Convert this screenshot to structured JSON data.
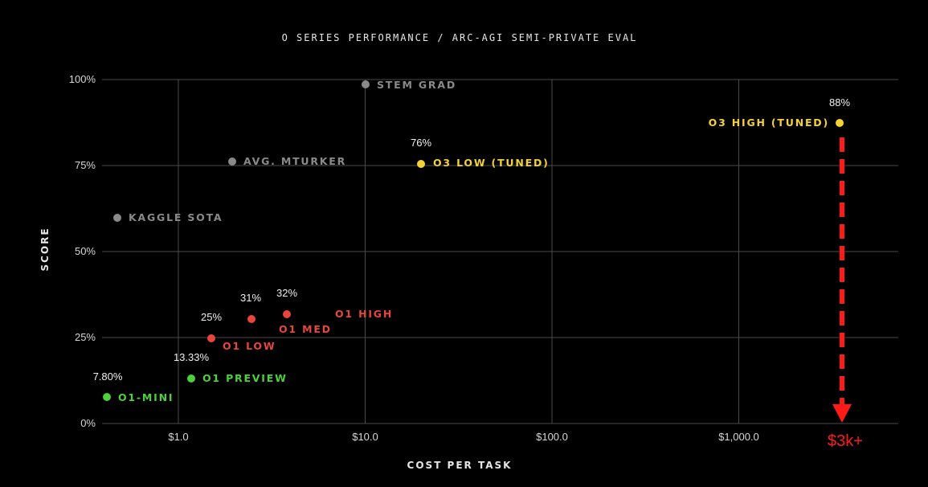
{
  "chart_data": {
    "type": "scatter",
    "title": "O SERIES PERFORMANCE / ARC-AGI SEMI-PRIVATE EVAL",
    "xlabel": "COST PER TASK",
    "ylabel": "SCORE",
    "x_scale": "log",
    "xlim": [
      0.42,
      6000
    ],
    "ylim": [
      0,
      100
    ],
    "x_ticks": [
      1,
      10,
      100,
      1000
    ],
    "x_tick_labels": [
      "$1.0",
      "$10.0",
      "$100.0",
      "$1,000.0"
    ],
    "y_ticks": [
      0,
      25,
      50,
      75,
      100
    ],
    "y_tick_labels": [
      "0%",
      "25%",
      "50%",
      "75%",
      "100%"
    ],
    "grid": true,
    "points": [
      {
        "label": "O1-MINI",
        "value_label": "7.80%",
        "x": 0.42,
        "y": 7.8,
        "group": "o1-mini",
        "color": "#4cd03c"
      },
      {
        "label": "O1 PREVIEW",
        "value_label": "13.33%",
        "x": 1.2,
        "y": 13.33,
        "group": "o1-preview",
        "color": "#4cd03c"
      },
      {
        "label": "O1 LOW",
        "value_label": "25%",
        "x": 1.5,
        "y": 25,
        "group": "o1",
        "color": "#e8453c"
      },
      {
        "label": "O1 MED",
        "value_label": "31%",
        "x": 2.5,
        "y": 31,
        "group": "o1",
        "color": "#e8453c"
      },
      {
        "label": "O1 HIGH",
        "value_label": "32%",
        "x": 3.9,
        "y": 32,
        "group": "o1",
        "color": "#e8453c"
      },
      {
        "label": "KAGGLE SOTA",
        "value_label": "",
        "x": 0.47,
        "y": 60,
        "group": "reference",
        "color": "#8a8a8a"
      },
      {
        "label": "AVG. MTURKER",
        "value_label": "",
        "x": 2.0,
        "y": 76,
        "group": "reference",
        "color": "#8a8a8a"
      },
      {
        "label": "STEM GRAD",
        "value_label": "",
        "x": 10,
        "y": 98.5,
        "group": "reference",
        "color": "#8a8a8a"
      },
      {
        "label": "O3 LOW (TUNED)",
        "value_label": "76%",
        "x": 20,
        "y": 76,
        "group": "o3",
        "color": "#f5d233"
      },
      {
        "label": "O3 HIGH (TUNED)",
        "value_label": "88%",
        "x": 3000,
        "y": 88,
        "group": "o3",
        "color": "#f5d233"
      }
    ],
    "annotation": {
      "text": "$3k+",
      "color": "#ff1a1a",
      "style": "dashed red arrow pointing down from O3 HIGH (TUNED) to the x-axis"
    },
    "colors": {
      "background": "#000000",
      "grid": "#4a4a4a",
      "text": "#e6e6e6"
    }
  }
}
